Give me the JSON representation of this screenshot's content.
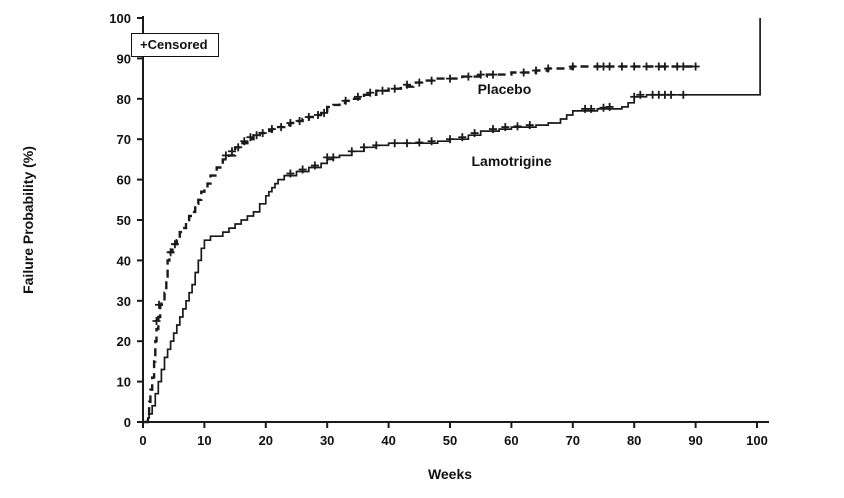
{
  "chart_data": {
    "type": "line",
    "subtype": "kaplan-meier-step",
    "title": "",
    "xlabel": "Weeks",
    "ylabel": "Failure Probability (%)",
    "xlim": [
      0,
      100
    ],
    "ylim": [
      0,
      100
    ],
    "xticks": [
      0,
      10,
      20,
      30,
      40,
      50,
      60,
      70,
      80,
      90,
      100
    ],
    "yticks": [
      0,
      10,
      20,
      30,
      40,
      50,
      60,
      70,
      80,
      90,
      100
    ],
    "grid": false,
    "line_color": "#1a1a1a",
    "legend": {
      "position": "top-left",
      "censored_label": "+Censored",
      "censored_symbol": "+"
    },
    "series": [
      {
        "name": "Placebo",
        "style": "dashed",
        "label_pos": {
          "x": 54.5,
          "y": 82.5
        },
        "points": [
          [
            0,
            0
          ],
          [
            0.8,
            2
          ],
          [
            1,
            5
          ],
          [
            1.2,
            8
          ],
          [
            1.5,
            11
          ],
          [
            1.8,
            15
          ],
          [
            2,
            20
          ],
          [
            2.2,
            23
          ],
          [
            2.5,
            26
          ],
          [
            2.8,
            29
          ],
          [
            3,
            30
          ],
          [
            3.5,
            32
          ],
          [
            3.8,
            36
          ],
          [
            4,
            40
          ],
          [
            4.3,
            42
          ],
          [
            4.8,
            43
          ],
          [
            5,
            44
          ],
          [
            5.5,
            45
          ],
          [
            6,
            47
          ],
          [
            6.5,
            48
          ],
          [
            7,
            50
          ],
          [
            7.5,
            51
          ],
          [
            8,
            52
          ],
          [
            8.5,
            54
          ],
          [
            9,
            55
          ],
          [
            9.5,
            57
          ],
          [
            10,
            58
          ],
          [
            10.5,
            59
          ],
          [
            11,
            61
          ],
          [
            12,
            63
          ],
          [
            13,
            65
          ],
          [
            14,
            66
          ],
          [
            15,
            68
          ],
          [
            16,
            69
          ],
          [
            17,
            70
          ],
          [
            18,
            71
          ],
          [
            19,
            71.5
          ],
          [
            20,
            72
          ],
          [
            21,
            72.5
          ],
          [
            22,
            73
          ],
          [
            23,
            73.5
          ],
          [
            24,
            74
          ],
          [
            25,
            74.5
          ],
          [
            26,
            75
          ],
          [
            27,
            75.5
          ],
          [
            28,
            76
          ],
          [
            29,
            76.5
          ],
          [
            30,
            78
          ],
          [
            31,
            78.5
          ],
          [
            32,
            79
          ],
          [
            33,
            79.5
          ],
          [
            34,
            80
          ],
          [
            36,
            81
          ],
          [
            38,
            82
          ],
          [
            40,
            82.5
          ],
          [
            42,
            83
          ],
          [
            44,
            84
          ],
          [
            46,
            84.5
          ],
          [
            48,
            85
          ],
          [
            52,
            85.5
          ],
          [
            56,
            86
          ],
          [
            60,
            86.5
          ],
          [
            64,
            87
          ],
          [
            66,
            87.5
          ],
          [
            70,
            88
          ],
          [
            90,
            88
          ]
        ],
        "censored": [
          [
            2.2,
            25
          ],
          [
            2.6,
            29
          ],
          [
            4.5,
            42
          ],
          [
            5.2,
            44
          ],
          [
            13.5,
            66
          ],
          [
            14.5,
            67
          ],
          [
            15.5,
            68
          ],
          [
            16.5,
            69.5
          ],
          [
            17.5,
            70.5
          ],
          [
            18.5,
            71
          ],
          [
            19.5,
            71.5
          ],
          [
            21,
            72.5
          ],
          [
            22.5,
            73
          ],
          [
            24,
            74
          ],
          [
            25.5,
            74.5
          ],
          [
            27,
            75.5
          ],
          [
            28.5,
            76
          ],
          [
            29.5,
            76.5
          ],
          [
            33,
            79.5
          ],
          [
            35,
            80.5
          ],
          [
            37,
            81.5
          ],
          [
            39,
            82
          ],
          [
            41,
            82.5
          ],
          [
            43,
            83.5
          ],
          [
            45,
            84
          ],
          [
            47,
            84.5
          ],
          [
            50,
            85
          ],
          [
            53,
            85.5
          ],
          [
            55,
            86
          ],
          [
            57,
            86
          ],
          [
            62,
            86.5
          ],
          [
            64,
            87
          ],
          [
            66,
            87.5
          ],
          [
            70,
            88
          ],
          [
            74,
            88
          ],
          [
            75,
            88
          ],
          [
            76,
            88
          ],
          [
            78,
            88
          ],
          [
            80,
            88
          ],
          [
            82,
            88
          ],
          [
            84,
            88
          ],
          [
            85,
            88
          ],
          [
            87,
            88
          ],
          [
            88,
            88
          ],
          [
            90,
            88
          ]
        ]
      },
      {
        "name": "Lamotrigine",
        "style": "solid",
        "label_pos": {
          "x": 53.5,
          "y": 64.5
        },
        "points": [
          [
            0,
            0
          ],
          [
            0.8,
            1
          ],
          [
            1,
            2
          ],
          [
            1.5,
            4
          ],
          [
            2,
            7
          ],
          [
            2.5,
            10
          ],
          [
            3,
            13
          ],
          [
            3.5,
            16
          ],
          [
            4,
            18
          ],
          [
            4.5,
            20
          ],
          [
            5,
            22
          ],
          [
            5.5,
            24
          ],
          [
            6,
            26
          ],
          [
            6.5,
            28
          ],
          [
            7,
            30
          ],
          [
            7.5,
            32
          ],
          [
            8,
            34
          ],
          [
            8.5,
            37
          ],
          [
            9,
            40
          ],
          [
            9.5,
            43
          ],
          [
            10,
            45
          ],
          [
            11,
            46
          ],
          [
            13,
            47
          ],
          [
            14,
            48
          ],
          [
            15,
            49
          ],
          [
            16,
            50
          ],
          [
            17,
            51
          ],
          [
            18,
            52
          ],
          [
            19,
            54
          ],
          [
            20,
            56
          ],
          [
            20.5,
            57
          ],
          [
            21,
            58
          ],
          [
            21.5,
            59
          ],
          [
            22,
            60
          ],
          [
            23,
            61
          ],
          [
            25,
            62
          ],
          [
            27,
            63
          ],
          [
            29,
            64
          ],
          [
            30,
            65
          ],
          [
            31,
            65.5
          ],
          [
            32,
            66
          ],
          [
            34,
            67
          ],
          [
            36,
            68
          ],
          [
            38,
            68.5
          ],
          [
            40,
            69
          ],
          [
            48,
            69.5
          ],
          [
            50,
            70
          ],
          [
            53,
            71
          ],
          [
            55,
            72
          ],
          [
            58,
            72.5
          ],
          [
            60,
            73
          ],
          [
            64,
            73.5
          ],
          [
            66,
            74
          ],
          [
            68,
            75
          ],
          [
            69,
            76
          ],
          [
            70,
            77
          ],
          [
            74,
            77.5
          ],
          [
            78,
            78
          ],
          [
            79,
            79
          ],
          [
            80,
            80.5
          ],
          [
            82,
            81
          ],
          [
            100.5,
            81
          ],
          [
            100.5,
            100
          ]
        ],
        "censored": [
          [
            24,
            61.5
          ],
          [
            26,
            62.5
          ],
          [
            28,
            63.5
          ],
          [
            30,
            65.5
          ],
          [
            31,
            65.5
          ],
          [
            34,
            67
          ],
          [
            36,
            68
          ],
          [
            38,
            68.5
          ],
          [
            41,
            69
          ],
          [
            43,
            69
          ],
          [
            45,
            69.2
          ],
          [
            47,
            69.5
          ],
          [
            50,
            70
          ],
          [
            52,
            70.5
          ],
          [
            54,
            71.5
          ],
          [
            57,
            72.5
          ],
          [
            59,
            73
          ],
          [
            61,
            73.2
          ],
          [
            63,
            73.5
          ],
          [
            72,
            77.5
          ],
          [
            73,
            77.5
          ],
          [
            75,
            77.8
          ],
          [
            76,
            78
          ],
          [
            80,
            80.5
          ],
          [
            81,
            81
          ],
          [
            83,
            81
          ],
          [
            84,
            81
          ],
          [
            85,
            81
          ],
          [
            86,
            81
          ],
          [
            88,
            81
          ]
        ]
      }
    ]
  }
}
